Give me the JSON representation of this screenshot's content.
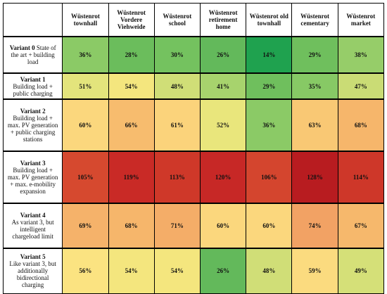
{
  "columns": [
    "Wüstenrot townhall",
    "Wüstenrot Vordere Viehweide",
    "Wüstenrot school",
    "Wüstenrot retirement home",
    "Wüstenrot old townhall",
    "Wüstenrot cementary",
    "Wüstenrot market"
  ],
  "rows": [
    {
      "variant": "Variant 0",
      "description": "State of the art + building load",
      "values": [
        "36%",
        "28%",
        "30%",
        "26%",
        "14%",
        "29%",
        "38%"
      ],
      "colors": [
        "#8bca66",
        "#6bbd5c",
        "#74c25f",
        "#63b95b",
        "#1fa24f",
        "#6fbf5d",
        "#96cd69"
      ]
    },
    {
      "variant": "Variant 1",
      "description": "Building load + public charging",
      "values": [
        "51%",
        "54%",
        "48%",
        "41%",
        "29%",
        "35%",
        "47%"
      ],
      "colors": [
        "#e3e47c",
        "#f4e67e",
        "#d0de77",
        "#a7d36d",
        "#6fbf5d",
        "#87c965",
        "#cadc75"
      ]
    },
    {
      "variant": "Variant 2",
      "description": "Building load + max. PV generation + public charging stations",
      "values": [
        "60%",
        "66%",
        "61%",
        "52%",
        "36%",
        "63%",
        "68%"
      ],
      "colors": [
        "#fbd77d",
        "#f7bc6e",
        "#fbd37b",
        "#e9e67c",
        "#8bca66",
        "#f9c874",
        "#f6b66b"
      ]
    },
    {
      "variant": "Variant 3",
      "description": "Building load + max. PV generation + max. e-mobility expansion",
      "values": [
        "105%",
        "119%",
        "113%",
        "120%",
        "106%",
        "128%",
        "114%"
      ],
      "colors": [
        "#d6492f",
        "#c92a26",
        "#cf3829",
        "#c72826",
        "#d4452e",
        "#b81c20",
        "#ce3729"
      ]
    },
    {
      "variant": "Variant 4",
      "description": "As variant 3, but intelligent chargeload limit",
      "values": [
        "69%",
        "68%",
        "71%",
        "60%",
        "60%",
        "74%",
        "67%"
      ],
      "colors": [
        "#f5b26a",
        "#f6b66b",
        "#f4ad68",
        "#fbd77d",
        "#fbd77d",
        "#f2a264",
        "#f6b86c"
      ]
    },
    {
      "variant": "Variant 5",
      "description": "Like variant 3, but additionally bidirectional charging",
      "values": [
        "56%",
        "54%",
        "54%",
        "26%",
        "48%",
        "59%",
        "49%"
      ],
      "colors": [
        "#fbe381",
        "#f4e67e",
        "#f4e67e",
        "#63b95b",
        "#d0de77",
        "#fbdb7f",
        "#d5e078"
      ]
    }
  ]
}
